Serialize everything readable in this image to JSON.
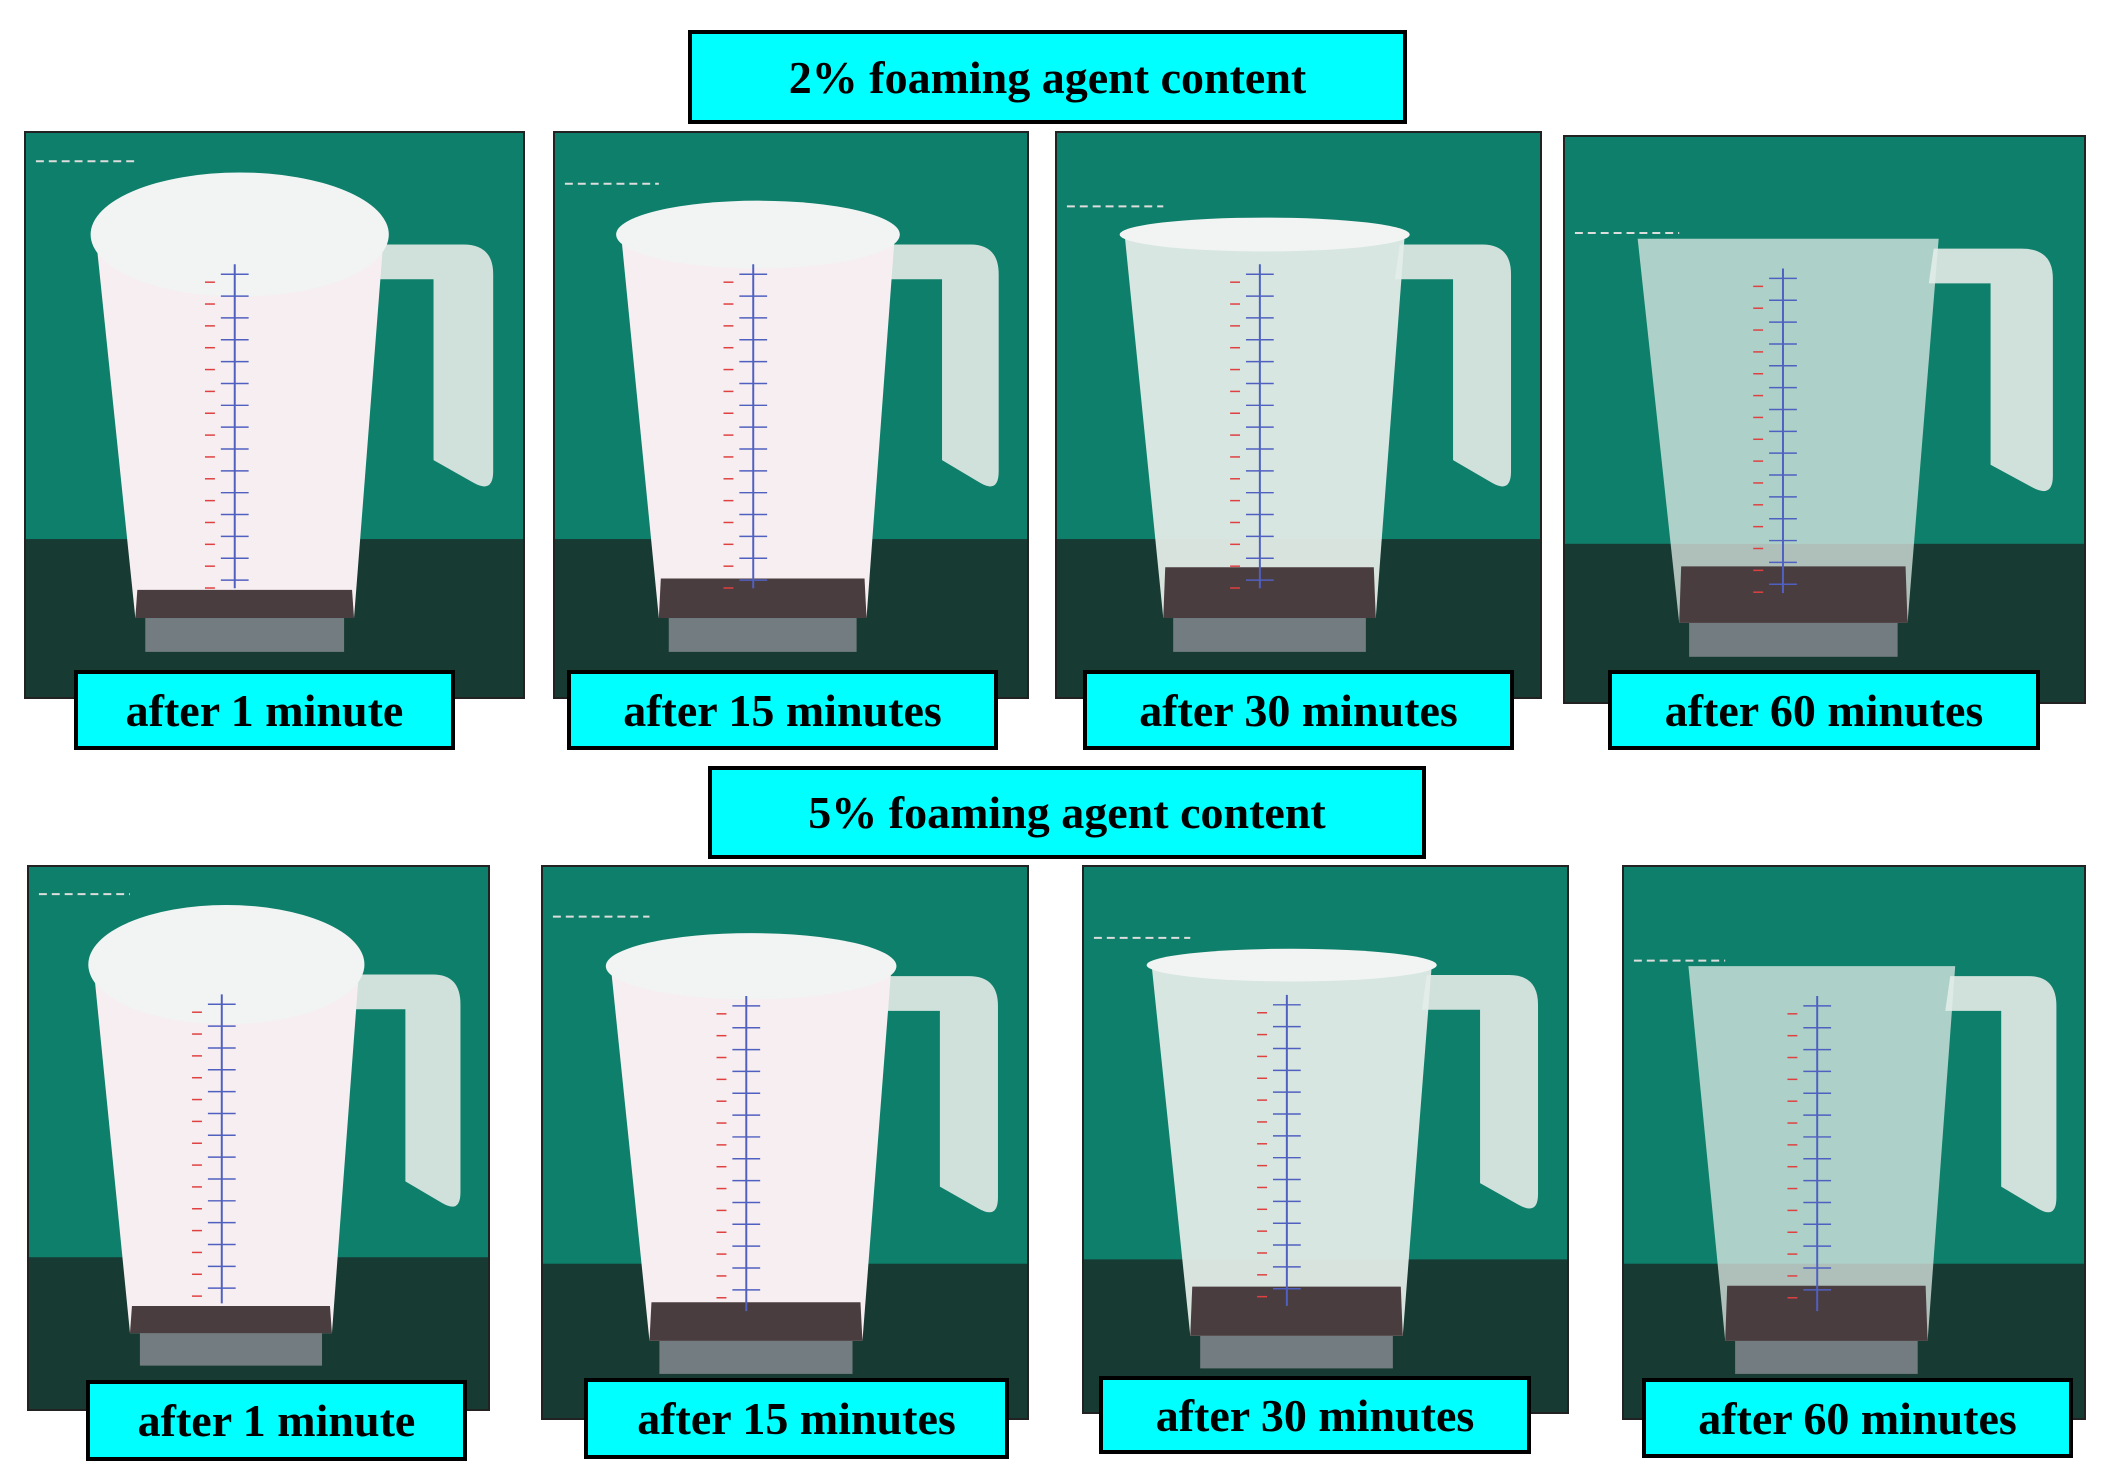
{
  "groups": [
    {
      "title": "2% foaming agent content",
      "panels": [
        {
          "label": "after 1 minute"
        },
        {
          "label": "after 15 minutes"
        },
        {
          "label": "after 30 minutes"
        },
        {
          "label": "after 60 minutes"
        }
      ]
    },
    {
      "title": "5% foaming agent content",
      "panels": [
        {
          "label": "after 1 minute"
        },
        {
          "label": "after 15 minutes"
        },
        {
          "label": "after 30 minutes"
        },
        {
          "label": "after 60 minutes"
        }
      ]
    }
  ]
}
